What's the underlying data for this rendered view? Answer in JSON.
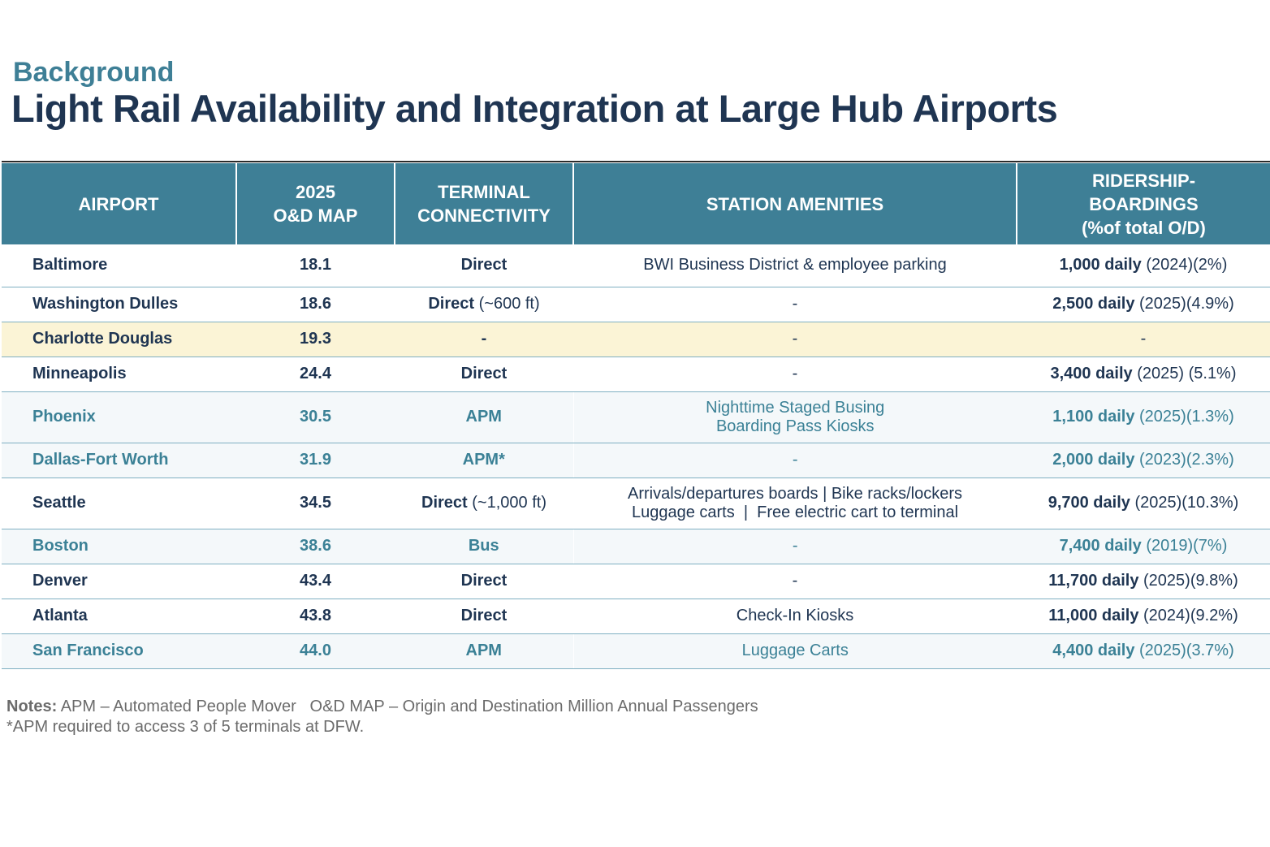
{
  "header": {
    "kicker": "Background",
    "title": "Light Rail Availability and Integration at Large Hub Airports"
  },
  "table": {
    "columns": [
      [
        "AIRPORT"
      ],
      [
        "2025",
        "O&D MAP"
      ],
      [
        "TERMINAL",
        "CONNECTIVITY"
      ],
      [
        "STATION AMENITIES"
      ],
      [
        "RIDERSHIP-",
        "BOARDINGS",
        "(%of total O/D)"
      ]
    ],
    "rows": [
      {
        "style": "dark",
        "height": 52,
        "airport": "Baltimore",
        "map": "18.1",
        "conn_bold": "Direct",
        "conn_rest": "",
        "amenities": [
          "BWI Business District & employee parking"
        ],
        "rid_bold": "1,000 daily",
        "rid_rest": " (2024)(2%)"
      },
      {
        "style": "dark",
        "height": 43,
        "airport": "Washington Dulles",
        "map": "18.6",
        "conn_bold": "Direct",
        "conn_rest": " (~600 ft)",
        "amenities": [
          "-"
        ],
        "rid_bold": "2,500 daily",
        "rid_rest": " (2025)(4.9%)"
      },
      {
        "style": "hl",
        "height": 43,
        "airport": "Charlotte Douglas",
        "map": "19.3",
        "conn_bold": "-",
        "conn_rest": "",
        "amenities": [
          "-"
        ],
        "rid_bold": "",
        "rid_rest": "-"
      },
      {
        "style": "dark",
        "height": 43,
        "airport": "Minneapolis",
        "map": "24.4",
        "conn_bold": "Direct",
        "conn_rest": "",
        "amenities": [
          "-"
        ],
        "rid_bold": "3,400 daily",
        "rid_rest": " (2025) (5.1%)"
      },
      {
        "style": "teal",
        "height": 63,
        "airport": "Phoenix",
        "map": "30.5",
        "conn_bold": "APM",
        "conn_rest": "",
        "amenities": [
          "Nighttime Staged Busing",
          "Boarding Pass Kiosks"
        ],
        "rid_bold": "1,100 daily",
        "rid_rest": " (2025)(1.3%)"
      },
      {
        "style": "teal",
        "height": 43,
        "airport": "Dallas-Fort Worth",
        "map": "31.9",
        "conn_bold": "APM*",
        "conn_rest": "",
        "amenities": [
          "-"
        ],
        "rid_bold": "2,000 daily",
        "rid_rest": " (2023)(2.3%)"
      },
      {
        "style": "dark",
        "height": 63,
        "airport": "Seattle",
        "map": "34.5",
        "conn_bold": "Direct",
        "conn_rest": " (~1,000 ft)",
        "amenities": [
          "Arrivals/departures boards | Bike racks/lockers",
          "Luggage carts  |  Free electric cart to terminal"
        ],
        "rid_bold": "9,700 daily",
        "rid_rest": " (2025)(10.3%)"
      },
      {
        "style": "teal",
        "height": 43,
        "airport": "Boston",
        "map": "38.6",
        "conn_bold": "Bus",
        "conn_rest": "",
        "amenities": [
          "-"
        ],
        "rid_bold": "7,400 daily",
        "rid_rest": " (2019)(7%)"
      },
      {
        "style": "dark",
        "height": 43,
        "airport": "Denver",
        "map": "43.4",
        "conn_bold": "Direct",
        "conn_rest": "",
        "amenities": [
          "-"
        ],
        "rid_bold": "11,700 daily",
        "rid_rest": " (2025)(9.8%)"
      },
      {
        "style": "dark",
        "height": 43,
        "airport": "Atlanta",
        "map": "43.8",
        "conn_bold": "Direct",
        "conn_rest": "",
        "amenities": [
          "Check-In Kiosks"
        ],
        "rid_bold": "11,000 daily",
        "rid_rest": " (2024)(9.2%)"
      },
      {
        "style": "teal",
        "height": 43,
        "airport": "San Francisco",
        "map": "44.0",
        "conn_bold": "APM",
        "conn_rest": "",
        "amenities": [
          "Luggage Carts"
        ],
        "rid_bold": "4,400 daily",
        "rid_rest": " (2025)(3.7%)"
      }
    ]
  },
  "notes": {
    "label": "Notes:",
    "line1": " APM – Automated People Mover   O&D MAP – Origin and Destination Million Annual Passengers",
    "line2": "*APM required to access 3 of 5 terminals at DFW."
  }
}
